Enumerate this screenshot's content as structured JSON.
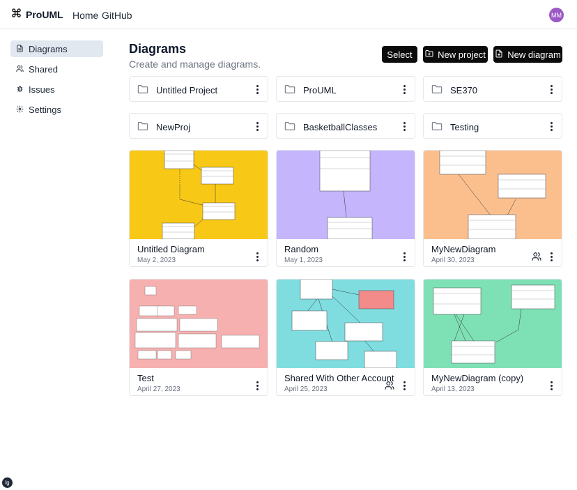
{
  "app": {
    "name": "ProUML",
    "user_initials": "MM"
  },
  "nav": {
    "home": "Home",
    "github": "GitHub"
  },
  "sidebar": {
    "items": [
      {
        "label": "Diagrams",
        "icon": "file-icon"
      },
      {
        "label": "Shared",
        "icon": "users-icon"
      },
      {
        "label": "Issues",
        "icon": "bug-icon"
      },
      {
        "label": "Settings",
        "icon": "gear-icon"
      }
    ]
  },
  "header": {
    "title": "Diagrams",
    "subtitle": "Create and manage diagrams."
  },
  "actions": {
    "select": "Select",
    "new_project": "New project",
    "new_diagram": "New diagram"
  },
  "projects": [
    {
      "name": "Untitled Project"
    },
    {
      "name": "ProUML"
    },
    {
      "name": "SE370"
    },
    {
      "name": "NewProj"
    },
    {
      "name": "BasketballClasses"
    },
    {
      "name": "Testing"
    }
  ],
  "diagrams": [
    {
      "name": "Untitled Diagram",
      "date": "May 2, 2023",
      "shared": false,
      "color": "#f8c817"
    },
    {
      "name": "Random",
      "date": "May 1, 2023",
      "shared": false,
      "color": "#c4b5fd"
    },
    {
      "name": "MyNewDiagram",
      "date": "April 30, 2023",
      "shared": true,
      "color": "#fbbf8e"
    },
    {
      "name": "Test",
      "date": "April 27, 2023",
      "shared": false,
      "color": "#f7b0b0"
    },
    {
      "name": "Shared With Other Account",
      "date": "April 25, 2023",
      "shared": true,
      "color": "#7fdde0"
    },
    {
      "name": "MyNewDiagram (copy)",
      "date": "April 13, 2023",
      "shared": false,
      "color": "#7ee1b6"
    }
  ],
  "badge": {
    "label": "lg"
  }
}
